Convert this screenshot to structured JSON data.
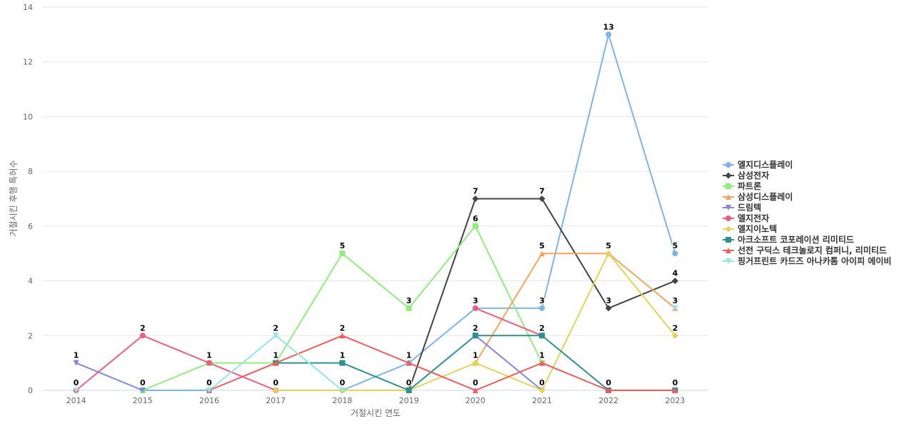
{
  "chart_data": {
    "type": "line",
    "title": "",
    "xlabel": "거절시킨 연도",
    "ylabel": "거절시킨 후행 특허수",
    "categories": [
      "2014",
      "2015",
      "2016",
      "2017",
      "2018",
      "2019",
      "2020",
      "2021",
      "2022",
      "2023"
    ],
    "ylim": [
      0,
      14
    ],
    "yticks": [
      0,
      2,
      4,
      6,
      8,
      10,
      12,
      14
    ],
    "grid": true,
    "legend_position": "right",
    "series": [
      {
        "name": "엘지디스플레이",
        "color": "#7cb5ec",
        "marker": "circle",
        "values": [
          null,
          0,
          0,
          null,
          0,
          1,
          3,
          3,
          13,
          5
        ]
      },
      {
        "name": "삼성전자",
        "color": "#434348",
        "marker": "diamond",
        "values": [
          null,
          null,
          null,
          null,
          null,
          0,
          7,
          7,
          3,
          4
        ]
      },
      {
        "name": "파트론",
        "color": "#90ed7d",
        "marker": "square",
        "values": [
          null,
          0,
          1,
          1,
          5,
          3,
          6,
          1,
          null,
          null
        ]
      },
      {
        "name": "삼성디스플레이",
        "color": "#f7a35c",
        "marker": "triangle",
        "values": [
          null,
          null,
          null,
          null,
          null,
          null,
          1,
          5,
          5,
          3
        ]
      },
      {
        "name": "드림텍",
        "color": "#8085e9",
        "marker": "triangle-down",
        "values": [
          1,
          0,
          null,
          null,
          null,
          null,
          2,
          0,
          null,
          null
        ]
      },
      {
        "name": "엘지전자",
        "color": "#f15c80",
        "marker": "circle",
        "values": [
          0,
          2,
          1,
          0,
          null,
          null,
          3,
          2,
          null,
          null
        ]
      },
      {
        "name": "엘지이노텍",
        "color": "#e4d354",
        "marker": "diamond",
        "values": [
          null,
          null,
          null,
          0,
          0,
          0,
          1,
          0,
          5,
          2
        ]
      },
      {
        "name": "아크소프트 코포레이션 리미티드",
        "color": "#2b908f",
        "marker": "square",
        "values": [
          null,
          null,
          null,
          1,
          1,
          0,
          2,
          2,
          0,
          0
        ]
      },
      {
        "name": "선전 구딕스 테크놀로지 컴퍼니, 리미티드",
        "color": "#f45b5b",
        "marker": "triangle",
        "values": [
          null,
          null,
          0,
          1,
          2,
          1,
          0,
          1,
          0,
          0
        ]
      },
      {
        "name": "핑거프린트 카드즈 아나카톰 아이피 에이비",
        "color": "#91e8e1",
        "marker": "triangle-down",
        "values": [
          0,
          null,
          0,
          2,
          0,
          null,
          null,
          null,
          null,
          3
        ]
      }
    ],
    "data_labels": [
      {
        "x": "2014",
        "value": 1
      },
      {
        "x": "2014",
        "value": 0
      },
      {
        "x": "2015",
        "value": 2
      },
      {
        "x": "2015",
        "value": 0
      },
      {
        "x": "2016",
        "value": 1
      },
      {
        "x": "2016",
        "value": 0
      },
      {
        "x": "2017",
        "value": 2
      },
      {
        "x": "2017",
        "value": 1
      },
      {
        "x": "2017",
        "value": 0
      },
      {
        "x": "2018",
        "value": 5
      },
      {
        "x": "2018",
        "value": 2
      },
      {
        "x": "2018",
        "value": 1
      },
      {
        "x": "2018",
        "value": 0
      },
      {
        "x": "2019",
        "value": 3
      },
      {
        "x": "2019",
        "value": 1
      },
      {
        "x": "2019",
        "value": 0
      },
      {
        "x": "2020",
        "value": 7
      },
      {
        "x": "2020",
        "value": 6
      },
      {
        "x": "2020",
        "value": 3
      },
      {
        "x": "2020",
        "value": 2
      },
      {
        "x": "2020",
        "value": 1
      },
      {
        "x": "2020",
        "value": 0
      },
      {
        "x": "2021",
        "value": 7
      },
      {
        "x": "2021",
        "value": 5
      },
      {
        "x": "2021",
        "value": 3
      },
      {
        "x": "2021",
        "value": 2
      },
      {
        "x": "2021",
        "value": 1
      },
      {
        "x": "2021",
        "value": 0
      },
      {
        "x": "2022",
        "value": 13
      },
      {
        "x": "2022",
        "value": 5
      },
      {
        "x": "2022",
        "value": 3
      },
      {
        "x": "2022",
        "value": 0
      },
      {
        "x": "2023",
        "value": 5
      },
      {
        "x": "2023",
        "value": 4
      },
      {
        "x": "2023",
        "value": 3
      },
      {
        "x": "2023",
        "value": 2
      },
      {
        "x": "2023",
        "value": 0
      }
    ]
  }
}
